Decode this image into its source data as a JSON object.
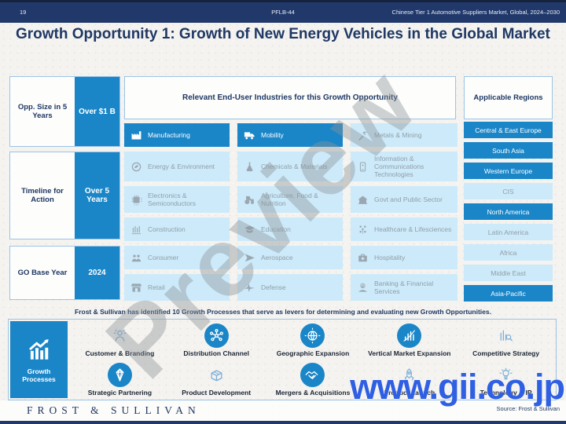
{
  "header": {
    "page_number": "19",
    "doc_code": "PFLB-44",
    "report_title": "Chinese Tier 1 Automotive Suppliers Market, Global, 2024–2030"
  },
  "title": "Growth Opportunity 1: Growth of New Energy Vehicles in the Global Market",
  "stats": [
    {
      "label": "Opp. Size in 5 Years",
      "value": "Over $1 B"
    },
    {
      "label": "Timeline for Action",
      "value": "Over 5 Years"
    },
    {
      "label": "GO Base Year",
      "value": "2024"
    }
  ],
  "industries_panel": {
    "header": "Relevant End-User Industries for this Growth Opportunity",
    "cells": [
      {
        "label": "Manufacturing",
        "icon": "factory-icon",
        "active": true
      },
      {
        "label": "Mobility",
        "icon": "truck-icon",
        "active": true
      },
      {
        "label": "Metals & Mining",
        "icon": "pickaxe-icon",
        "active": false
      },
      {
        "label": "Energy & Environment",
        "icon": "globe-leaf-icon",
        "active": false
      },
      {
        "label": "Chemicals & Materials",
        "icon": "flask-icon",
        "active": false
      },
      {
        "label": "Information & Communications Technologies",
        "icon": "smartphone-icon",
        "active": false
      },
      {
        "label": "Electronics & Semiconductors",
        "icon": "circuit-chip-icon",
        "active": false
      },
      {
        "label": "Agriculture, Food & Nutrition",
        "icon": "tractor-icon",
        "active": false
      },
      {
        "label": "Govt and Public Sector",
        "icon": "government-building-icon",
        "active": false
      },
      {
        "label": "Construction",
        "icon": "construction-frame-icon",
        "active": false
      },
      {
        "label": "Education",
        "icon": "graduation-cap-icon",
        "active": false
      },
      {
        "label": "Healthcare & Lifesciences",
        "icon": "people-network-icon",
        "active": false
      },
      {
        "label": "Consumer",
        "icon": "consumers-icon",
        "active": false
      },
      {
        "label": "Aerospace",
        "icon": "paper-plane-icon",
        "active": false
      },
      {
        "label": "Hospitality",
        "icon": "first-aid-case-icon",
        "active": false
      },
      {
        "label": "Retail",
        "icon": "storefront-icon",
        "active": false
      },
      {
        "label": "Defense",
        "icon": "fighter-jet-icon",
        "active": false
      },
      {
        "label": "Banking & Financial Services",
        "icon": "hand-coins-icon",
        "active": false
      }
    ]
  },
  "regions_panel": {
    "header": "Applicable Regions",
    "regions": [
      {
        "label": "Central & East Europe",
        "active": true
      },
      {
        "label": "South Asia",
        "active": true
      },
      {
        "label": "Western Europe",
        "active": true
      },
      {
        "label": "CIS",
        "active": false
      },
      {
        "label": "North America",
        "active": true
      },
      {
        "label": "Latin America",
        "active": false
      },
      {
        "label": "Africa",
        "active": false
      },
      {
        "label": "Middle East",
        "active": false
      },
      {
        "label": "Asia-Pacific",
        "active": true
      }
    ]
  },
  "growth_processes": {
    "intro": "Frost & Sullivan has identified 10 Growth Processes that serve as levers for determining and evaluating new Growth Opportunities.",
    "box_label": "Growth Processes",
    "box_icon": "chart-arrow-icon",
    "items": [
      {
        "label": "Customer & Branding",
        "icon": "customer-branding-icon",
        "variant": "outline"
      },
      {
        "label": "Distribution Channel",
        "icon": "distribution-network-icon",
        "variant": "solid"
      },
      {
        "label": "Geographic Expansion",
        "icon": "globe-grid-icon",
        "variant": "solid"
      },
      {
        "label": "Vertical Market Expansion",
        "icon": "growth-bars-icon",
        "variant": "solid"
      },
      {
        "label": "Competitive Strategy",
        "icon": "chart-magnifier-icon",
        "variant": "outline"
      },
      {
        "label": "Strategic Partnering",
        "icon": "partnering-ribbon-icon",
        "variant": "solid"
      },
      {
        "label": "Product Development",
        "icon": "package-dev-icon",
        "variant": "outline"
      },
      {
        "label": "Mergers & Acquisitions",
        "icon": "handshake-icon",
        "variant": "solid"
      },
      {
        "label": "Product Launch",
        "icon": "rocket-icon",
        "variant": "outline"
      },
      {
        "label": "Technology & IP",
        "icon": "bulb-gear-icon",
        "variant": "outline"
      }
    ]
  },
  "footer": {
    "logo": "FROST & SULLIVAN",
    "source": "Source: Frost & Sullivan"
  },
  "watermarks": {
    "diagonal": "Preview",
    "site": "www.gii.co.jp"
  },
  "colors": {
    "navy": "#1F3864",
    "active_blue": "#1A86C8",
    "inactive_blue": "#CDEAFA",
    "border_blue": "#9DC3E6",
    "watermark_blue": "#2F5FE3"
  }
}
